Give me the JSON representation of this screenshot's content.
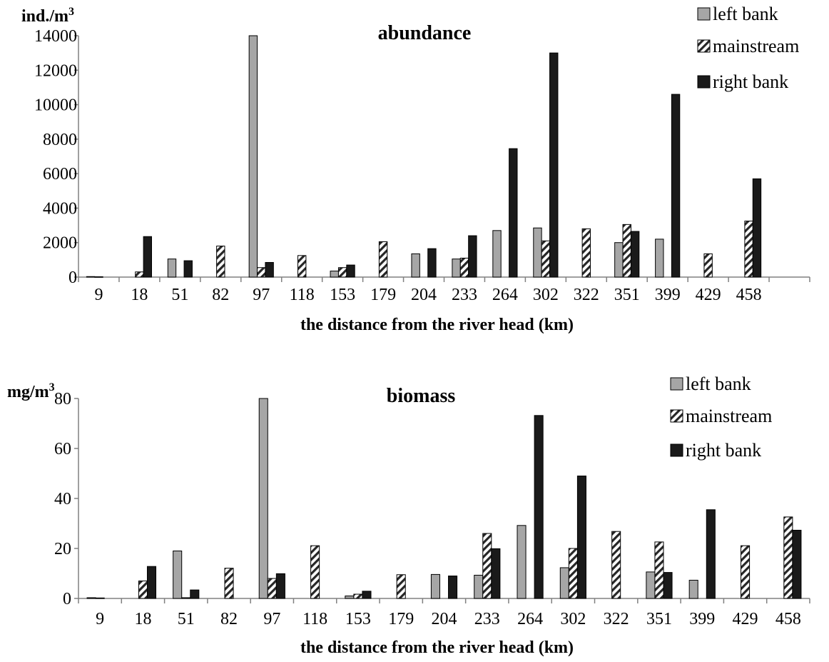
{
  "chart_data": [
    {
      "type": "bar",
      "title": "abundance",
      "ylabel": "ind./m",
      "ylabel_sup": "3",
      "xlabel": "the distance from the river head (km)",
      "categories": [
        "9",
        "18",
        "51",
        "82",
        "97",
        "118",
        "153",
        "179",
        "204",
        "233",
        "264",
        "302",
        "322",
        "351",
        "399",
        "429",
        "458"
      ],
      "ylim": [
        0,
        14000
      ],
      "yticks": [
        0,
        2000,
        4000,
        6000,
        8000,
        10000,
        12000,
        14000
      ],
      "legend_position": "top-right",
      "series": [
        {
          "name": "left bank",
          "pattern": "solid-gray",
          "values": [
            30,
            0,
            1050,
            0,
            14000,
            0,
            350,
            0,
            1350,
            1050,
            2700,
            2850,
            0,
            2000,
            2200,
            0,
            0
          ]
        },
        {
          "name": "mainstream",
          "pattern": "hatched",
          "values": [
            20,
            300,
            0,
            1800,
            550,
            1250,
            550,
            2050,
            0,
            1100,
            0,
            2100,
            2800,
            3050,
            0,
            1350,
            3250
          ]
        },
        {
          "name": "right bank",
          "pattern": "solid-black",
          "values": [
            0,
            2350,
            950,
            0,
            850,
            0,
            700,
            0,
            1650,
            2400,
            7450,
            13000,
            0,
            2650,
            10600,
            0,
            5700
          ]
        }
      ]
    },
    {
      "type": "bar",
      "title": "biomass",
      "ylabel": "mg/m",
      "ylabel_sup": "3",
      "xlabel": "the distance from the river head (km)",
      "categories": [
        "9",
        "18",
        "51",
        "82",
        "97",
        "118",
        "153",
        "179",
        "204",
        "233",
        "264",
        "302",
        "322",
        "351",
        "399",
        "429",
        "458"
      ],
      "ylim": [
        0,
        80
      ],
      "yticks": [
        0,
        20,
        40,
        60,
        80
      ],
      "legend_position": "top-right",
      "series": [
        {
          "name": "left bank",
          "pattern": "solid-gray",
          "values": [
            0.3,
            0,
            19,
            0,
            80,
            0,
            1,
            0,
            9.6,
            9.3,
            29.2,
            12.3,
            0,
            10.6,
            7.3,
            0,
            0
          ]
        },
        {
          "name": "mainstream",
          "pattern": "hatched",
          "values": [
            0.2,
            7,
            0.3,
            12.1,
            8,
            21.1,
            1.7,
            9.5,
            0,
            26,
            0,
            20,
            26.8,
            22.6,
            0,
            21.1,
            32.6
          ]
        },
        {
          "name": "right bank",
          "pattern": "solid-black",
          "values": [
            0,
            12.8,
            3.4,
            0,
            9.9,
            0,
            2.9,
            0,
            9,
            19.9,
            73.2,
            49,
            0,
            10.4,
            35.5,
            0,
            27.3
          ]
        }
      ]
    }
  ],
  "colors": {
    "left_bank_fill": "#a6a6a6",
    "right_bank_fill": "#1a1a1a",
    "hatch_stroke": "#262626",
    "axis": "#808080"
  }
}
